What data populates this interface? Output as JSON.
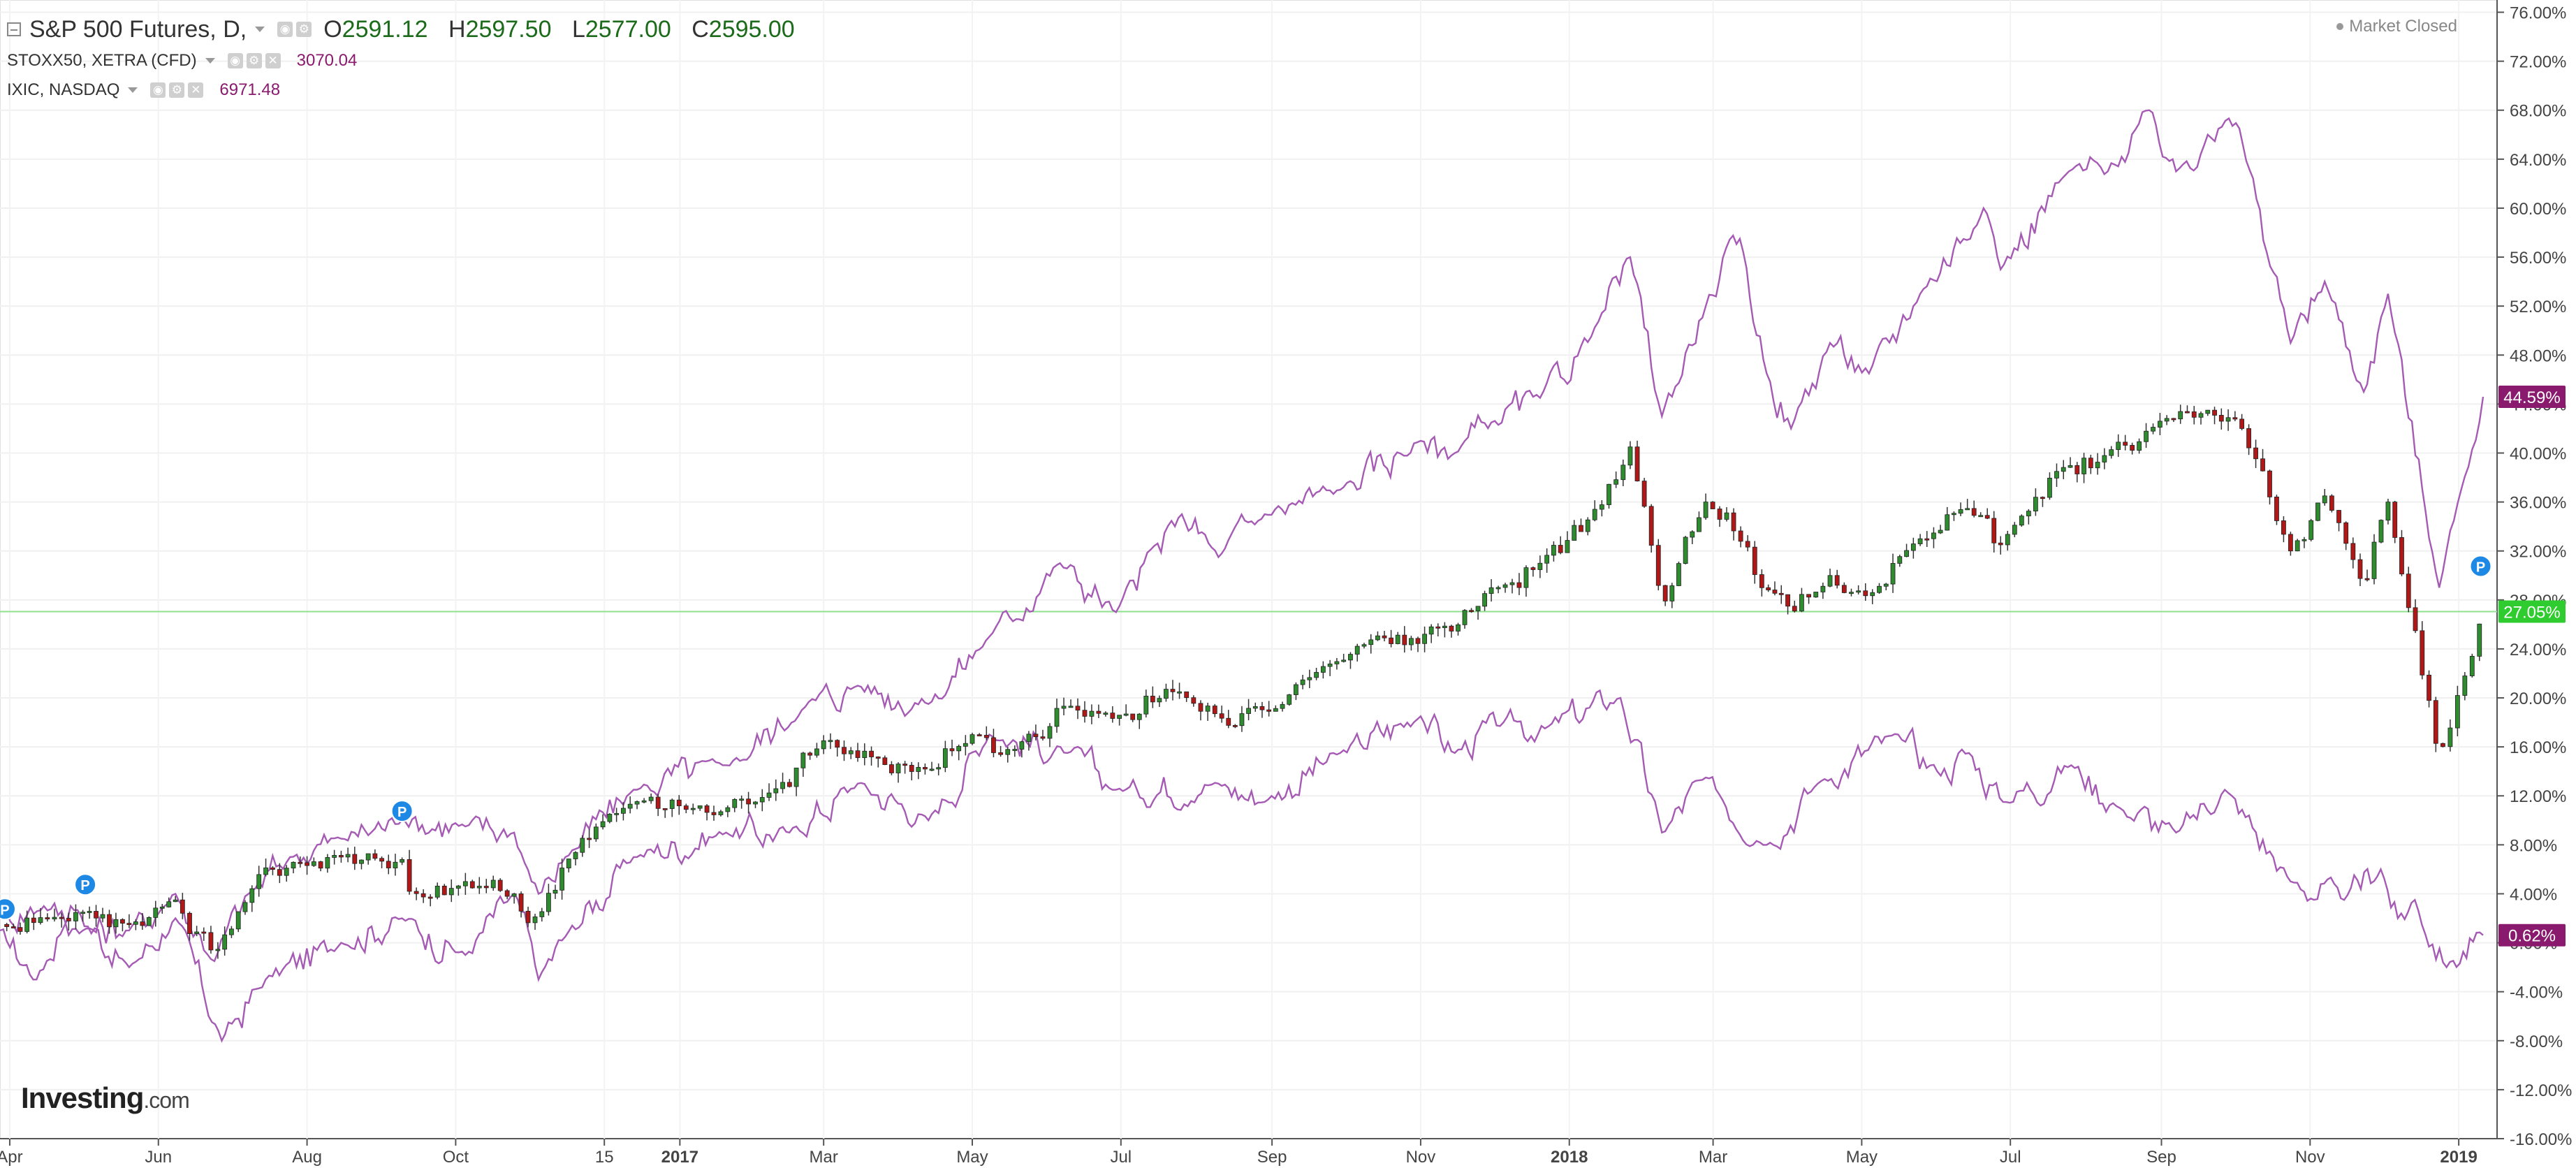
{
  "header": {
    "main_series": {
      "name": "S&P 500 Futures, D,",
      "o_label": "O",
      "o": "2591.12",
      "h_label": "H",
      "h": "2597.50",
      "l_label": "L",
      "l": "2577.00",
      "c_label": "C",
      "c": "2595.00"
    },
    "compare_series": [
      {
        "name": "STOXX50, XETRA (CFD)",
        "value": "3070.04"
      },
      {
        "name": "IXIC, NASDAQ",
        "value": "6971.48"
      }
    ],
    "status": "Market Closed"
  },
  "logo": {
    "brand": "Investing",
    "domain": ".com"
  },
  "colors": {
    "up": "#2e8b2e",
    "down": "#b01818",
    "compare": "#a55ab4",
    "badge_pos": "#2ecc2e",
    "badge_compare": "#8a1a6e",
    "marker": "#1e88e5"
  },
  "chart_data": {
    "type": "line",
    "title": "S&P 500 Futures, D,",
    "x_range": [
      "2016-03-28",
      "2019-01-11"
    ],
    "ylim": [
      -16,
      77
    ],
    "y_ticks": [
      "76.00%",
      "72.00%",
      "68.00%",
      "64.00%",
      "60.00%",
      "56.00%",
      "52.00%",
      "48.00%",
      "44.00%",
      "40.00%",
      "36.00%",
      "32.00%",
      "28.00%",
      "24.00%",
      "20.00%",
      "16.00%",
      "12.00%",
      "8.00%",
      "4.00%",
      "0.00%",
      "-4.00%",
      "-8.00%",
      "-12.00%",
      "-16.00%"
    ],
    "x_ticks": [
      {
        "date": "2016-04-01",
        "label": "Apr"
      },
      {
        "date": "2016-06-01",
        "label": "Jun"
      },
      {
        "date": "2016-08-01",
        "label": "Aug"
      },
      {
        "date": "2016-10-01",
        "label": "Oct"
      },
      {
        "date": "2016-12-01",
        "label": "15"
      },
      {
        "date": "2017-01-01",
        "label": "2017"
      },
      {
        "date": "2017-03-01",
        "label": "Mar"
      },
      {
        "date": "2017-05-01",
        "label": "May"
      },
      {
        "date": "2017-07-01",
        "label": "Jul"
      },
      {
        "date": "2017-09-01",
        "label": "Sep"
      },
      {
        "date": "2017-11-01",
        "label": "Nov"
      },
      {
        "date": "2018-01-01",
        "label": "2018"
      },
      {
        "date": "2018-03-01",
        "label": "Mar"
      },
      {
        "date": "2018-05-01",
        "label": "May"
      },
      {
        "date": "2018-07-01",
        "label": "Jul"
      },
      {
        "date": "2018-09-01",
        "label": "Sep"
      },
      {
        "date": "2018-11-01",
        "label": "Nov"
      },
      {
        "date": "2019-01-01",
        "label": "2019"
      }
    ],
    "bold_x_labels": [
      "2017",
      "2018",
      "2019"
    ],
    "grid": true,
    "series": [
      {
        "name": "S&P 500 Futures, D,",
        "style": "candlestick",
        "last_label": "27.05%",
        "points": [
          [
            "2016-03-28",
            1.5
          ],
          [
            "2016-04-15",
            2.0
          ],
          [
            "2016-05-01",
            2.5
          ],
          [
            "2016-05-20",
            1.5
          ],
          [
            "2016-06-08",
            3.5
          ],
          [
            "2016-06-24",
            -1.0
          ],
          [
            "2016-07-08",
            4.0
          ],
          [
            "2016-07-25",
            6.5
          ],
          [
            "2016-08-15",
            7.0
          ],
          [
            "2016-09-09",
            6.8
          ],
          [
            "2016-09-12",
            4.2
          ],
          [
            "2016-10-05",
            5.0
          ],
          [
            "2016-10-25",
            4.0
          ],
          [
            "2016-11-04",
            2.0
          ],
          [
            "2016-11-15",
            6.5
          ],
          [
            "2016-12-13",
            11.5
          ],
          [
            "2017-01-05",
            11.0
          ],
          [
            "2017-02-01",
            11.5
          ],
          [
            "2017-03-01",
            16.5
          ],
          [
            "2017-03-22",
            15.0
          ],
          [
            "2017-04-13",
            14.0
          ],
          [
            "2017-05-01",
            17.0
          ],
          [
            "2017-05-17",
            15.5
          ],
          [
            "2017-06-09",
            19.5
          ],
          [
            "2017-06-29",
            18.5
          ],
          [
            "2017-07-25",
            20.5
          ],
          [
            "2017-08-10",
            18.5
          ],
          [
            "2017-08-21",
            19.0
          ],
          [
            "2017-09-15",
            21.5
          ],
          [
            "2017-10-13",
            25.0
          ],
          [
            "2017-11-15",
            25.5
          ],
          [
            "2017-11-30",
            29.0
          ],
          [
            "2017-12-20",
            31.0
          ],
          [
            "2018-01-10",
            35.0
          ],
          [
            "2018-01-26",
            40.5
          ],
          [
            "2018-02-08",
            27.5
          ],
          [
            "2018-02-26",
            36.0
          ],
          [
            "2018-03-08",
            34.5
          ],
          [
            "2018-03-21",
            29.0
          ],
          [
            "2018-04-02",
            27.0
          ],
          [
            "2018-04-18",
            30.0
          ],
          [
            "2018-05-04",
            28.5
          ],
          [
            "2018-05-25",
            33.0
          ],
          [
            "2018-06-12",
            35.5
          ],
          [
            "2018-06-27",
            32.5
          ],
          [
            "2018-07-20",
            38.5
          ],
          [
            "2018-08-10",
            40.0
          ],
          [
            "2018-08-30",
            42.5
          ],
          [
            "2018-09-20",
            43.5
          ],
          [
            "2018-10-04",
            42.0
          ],
          [
            "2018-10-24",
            32.0
          ],
          [
            "2018-11-07",
            36.5
          ],
          [
            "2018-11-23",
            29.0
          ],
          [
            "2018-12-03",
            36.0
          ],
          [
            "2018-12-24",
            15.0
          ],
          [
            "2019-01-02",
            21.0
          ],
          [
            "2019-01-11",
            27.05
          ]
        ]
      },
      {
        "name": "STOXX50, XETRA (CFD)",
        "style": "line",
        "last_label": "0.62%",
        "points": [
          [
            "2016-03-28",
            1.0
          ],
          [
            "2016-04-12",
            -3.0
          ],
          [
            "2016-04-26",
            3.0
          ],
          [
            "2016-05-20",
            -2.0
          ],
          [
            "2016-06-08",
            2.0
          ],
          [
            "2016-06-27",
            -8.0
          ],
          [
            "2016-07-15",
            -3.0
          ],
          [
            "2016-08-15",
            0.0
          ],
          [
            "2016-09-09",
            2.0
          ],
          [
            "2016-10-05",
            -1.0
          ],
          [
            "2016-10-25",
            4.0
          ],
          [
            "2016-11-04",
            -3.0
          ],
          [
            "2016-11-15",
            0.5
          ],
          [
            "2016-12-13",
            7.0
          ],
          [
            "2017-01-20",
            9.0
          ],
          [
            "2017-02-15",
            9.0
          ],
          [
            "2017-03-15",
            13.0
          ],
          [
            "2017-04-13",
            10.0
          ],
          [
            "2017-05-08",
            17.0
          ],
          [
            "2017-06-09",
            15.5
          ],
          [
            "2017-06-29",
            12.5
          ],
          [
            "2017-08-10",
            13.0
          ],
          [
            "2017-08-29",
            11.5
          ],
          [
            "2017-09-29",
            15.5
          ],
          [
            "2017-11-01",
            18.5
          ],
          [
            "2017-11-15",
            15.5
          ],
          [
            "2017-12-05",
            18.0
          ],
          [
            "2017-12-22",
            17.5
          ],
          [
            "2018-01-22",
            20.0
          ],
          [
            "2018-02-08",
            9.0
          ],
          [
            "2018-02-26",
            13.5
          ],
          [
            "2018-03-23",
            8.0
          ],
          [
            "2018-04-13",
            13.0
          ],
          [
            "2018-05-16",
            17.0
          ],
          [
            "2018-06-01",
            14.0
          ],
          [
            "2018-06-14",
            15.5
          ],
          [
            "2018-06-28",
            11.5
          ],
          [
            "2018-07-26",
            14.5
          ],
          [
            "2018-08-15",
            11.0
          ],
          [
            "2018-09-07",
            9.0
          ],
          [
            "2018-09-27",
            12.5
          ],
          [
            "2018-10-24",
            5.0
          ],
          [
            "2018-11-15",
            3.5
          ],
          [
            "2018-11-30",
            6.0
          ],
          [
            "2018-12-07",
            2.0
          ],
          [
            "2018-12-14",
            3.5
          ],
          [
            "2018-12-27",
            -2.0
          ],
          [
            "2019-01-11",
            0.62
          ]
        ]
      },
      {
        "name": "IXIC, NASDAQ",
        "style": "line",
        "last_label": "44.59%",
        "points": [
          [
            "2016-03-28",
            2.0
          ],
          [
            "2016-04-15",
            3.0
          ],
          [
            "2016-05-01",
            1.0
          ],
          [
            "2016-05-20",
            1.0
          ],
          [
            "2016-06-08",
            4.0
          ],
          [
            "2016-06-24",
            -1.5
          ],
          [
            "2016-07-08",
            4.0
          ],
          [
            "2016-07-25",
            7.0
          ],
          [
            "2016-08-15",
            8.5
          ],
          [
            "2016-09-09",
            10.0
          ],
          [
            "2016-10-05",
            9.5
          ],
          [
            "2016-10-25",
            9.0
          ],
          [
            "2016-11-04",
            4.0
          ],
          [
            "2016-11-15",
            7.0
          ],
          [
            "2016-12-13",
            12.5
          ],
          [
            "2017-01-20",
            14.5
          ],
          [
            "2017-02-20",
            19.0
          ],
          [
            "2017-03-15",
            21.0
          ],
          [
            "2017-04-13",
            19.5
          ],
          [
            "2017-05-08",
            25.0
          ],
          [
            "2017-06-06",
            31.0
          ],
          [
            "2017-06-29",
            27.0
          ],
          [
            "2017-07-26",
            35.0
          ],
          [
            "2017-08-10",
            31.5
          ],
          [
            "2017-08-29",
            35.0
          ],
          [
            "2017-09-29",
            37.0
          ],
          [
            "2017-11-01",
            41.0
          ],
          [
            "2017-11-15",
            40.0
          ],
          [
            "2017-11-30",
            42.5
          ],
          [
            "2017-12-20",
            44.5
          ],
          [
            "2018-01-10",
            49.5
          ],
          [
            "2018-01-26",
            56.0
          ],
          [
            "2018-02-08",
            43.0
          ],
          [
            "2018-02-26",
            52.0
          ],
          [
            "2018-03-12",
            57.5
          ],
          [
            "2018-03-23",
            46.5
          ],
          [
            "2018-04-02",
            42.0
          ],
          [
            "2018-04-18",
            49.0
          ],
          [
            "2018-05-04",
            46.5
          ],
          [
            "2018-05-25",
            53.0
          ],
          [
            "2018-06-20",
            60.0
          ],
          [
            "2018-06-27",
            55.0
          ],
          [
            "2018-07-25",
            63.0
          ],
          [
            "2018-08-10",
            63.0
          ],
          [
            "2018-08-27",
            68.0
          ],
          [
            "2018-09-07",
            63.0
          ],
          [
            "2018-09-20",
            66.0
          ],
          [
            "2018-10-03",
            66.5
          ],
          [
            "2018-10-24",
            49.0
          ],
          [
            "2018-11-07",
            54.0
          ],
          [
            "2018-11-23",
            45.0
          ],
          [
            "2018-12-03",
            53.0
          ],
          [
            "2018-12-24",
            29.0
          ],
          [
            "2019-01-02",
            37.0
          ],
          [
            "2019-01-11",
            44.59
          ]
        ]
      }
    ],
    "reference_line": 27.05,
    "markers": [
      {
        "label": "P",
        "date": "2016-03-30",
        "value": 1.5
      },
      {
        "label": "P",
        "date": "2016-05-02",
        "value": 3.5
      },
      {
        "label": "P",
        "date": "2016-09-09",
        "value": 9.5
      },
      {
        "label": "P",
        "date": "2019-01-10",
        "value": 29.5
      }
    ]
  }
}
